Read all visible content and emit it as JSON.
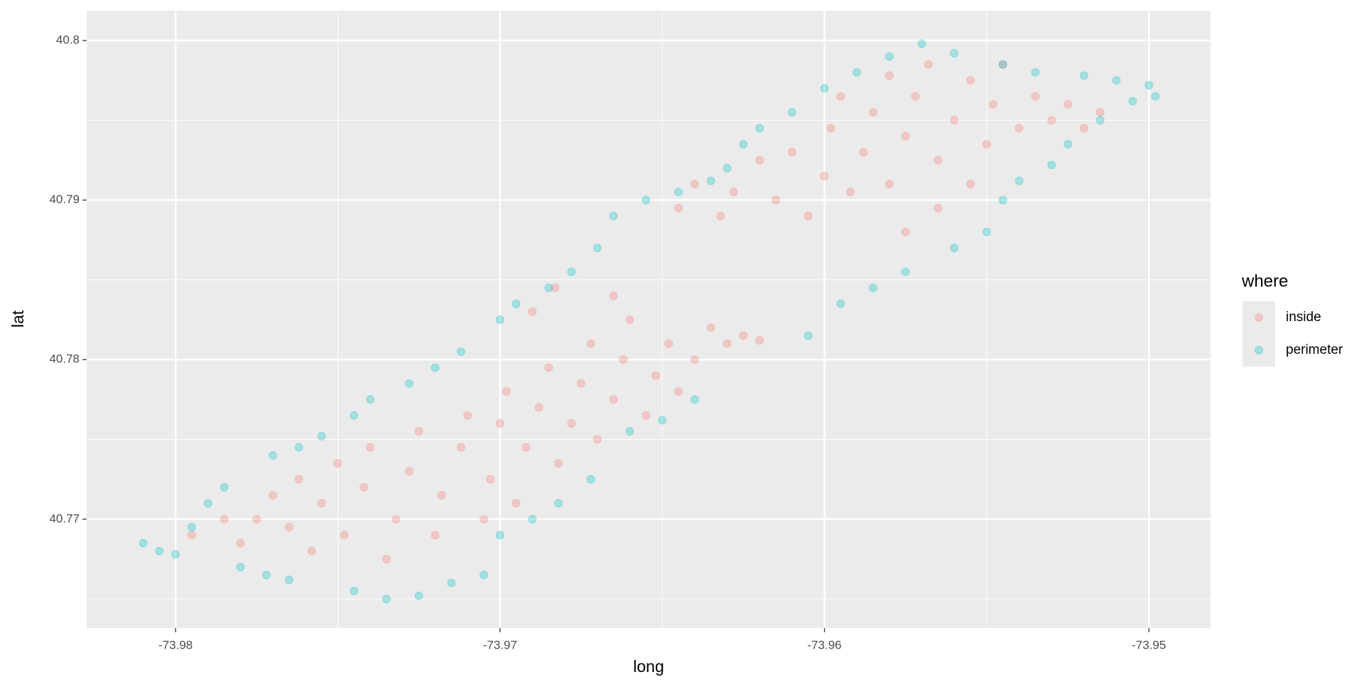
{
  "chart_data": {
    "type": "scatter",
    "x_label": "long",
    "y_label": "lat",
    "xlim": [
      -73.98274,
      -73.9481
    ],
    "ylim": [
      40.76318,
      40.80187
    ],
    "xticks": [
      -73.98,
      -73.97,
      -73.96,
      -73.95
    ],
    "yticks": [
      40.77,
      40.78,
      40.79,
      40.8
    ],
    "x_minor_ticks": [
      -73.975,
      -73.965,
      -73.955
    ],
    "y_minor_ticks": [
      40.765,
      40.775,
      40.785,
      40.795
    ],
    "grid": true,
    "opacity": 0.3,
    "legend_title": "where",
    "legend_position": "right",
    "series": [
      {
        "name": "inside",
        "color": "#F8766D",
        "x": [
          -73.9795,
          -73.9785,
          -73.978,
          -73.9775,
          -73.977,
          -73.9765,
          -73.9762,
          -73.9758,
          -73.9755,
          -73.975,
          -73.9748,
          -73.9742,
          -73.974,
          -73.9735,
          -73.9732,
          -73.9728,
          -73.9725,
          -73.972,
          -73.9718,
          -73.9712,
          -73.971,
          -73.9705,
          -73.9703,
          -73.97,
          -73.9698,
          -73.9695,
          -73.9692,
          -73.9688,
          -73.9685,
          -73.9682,
          -73.9678,
          -73.9675,
          -73.9672,
          -73.967,
          -73.9665,
          -73.9662,
          -73.966,
          -73.9655,
          -73.9652,
          -73.9648,
          -73.9645,
          -73.964,
          -73.9635,
          -73.963,
          -73.9625,
          -73.962,
          -73.9683,
          -73.969,
          -73.9665,
          -73.9645,
          -73.964,
          -73.9632,
          -73.9628,
          -73.962,
          -73.9615,
          -73.961,
          -73.9605,
          -73.96,
          -73.9598,
          -73.9592,
          -73.9588,
          -73.9585,
          -73.958,
          -73.9575,
          -73.9572,
          -73.9568,
          -73.9565,
          -73.956,
          -73.9555,
          -73.955,
          -73.9548,
          -73.9545,
          -73.954,
          -73.9535,
          -73.953,
          -73.9525,
          -73.952,
          -73.9515,
          -73.9575,
          -73.9565,
          -73.9555,
          -73.958,
          -73.9595
        ],
        "y": [
          40.769,
          40.77,
          40.7685,
          40.77,
          40.7715,
          40.7695,
          40.7725,
          40.768,
          40.771,
          40.7735,
          40.769,
          40.772,
          40.7745,
          40.7675,
          40.77,
          40.773,
          40.7755,
          40.769,
          40.7715,
          40.7745,
          40.7765,
          40.77,
          40.7725,
          40.776,
          40.778,
          40.771,
          40.7745,
          40.777,
          40.7795,
          40.7735,
          40.776,
          40.7785,
          40.781,
          40.775,
          40.7775,
          40.78,
          40.7825,
          40.7765,
          40.779,
          40.781,
          40.778,
          40.78,
          40.782,
          40.781,
          40.7815,
          40.7812,
          40.7845,
          40.783,
          40.784,
          40.7895,
          40.791,
          40.789,
          40.7905,
          40.7925,
          40.79,
          40.793,
          40.789,
          40.7915,
          40.7945,
          40.7905,
          40.793,
          40.7955,
          40.791,
          40.794,
          40.7965,
          40.7985,
          40.7925,
          40.795,
          40.7975,
          40.7935,
          40.796,
          40.7985,
          40.7945,
          40.7965,
          40.795,
          40.796,
          40.7945,
          40.7955,
          40.788,
          40.7895,
          40.791,
          40.7978,
          40.7965
        ]
      },
      {
        "name": "perimeter",
        "color": "#00BFC4",
        "x": [
          -73.981,
          -73.9805,
          -73.98,
          -73.9795,
          -73.979,
          -73.9785,
          -73.978,
          -73.9772,
          -73.9765,
          -73.977,
          -73.9762,
          -73.9755,
          -73.9745,
          -73.9745,
          -73.974,
          -73.9735,
          -73.9728,
          -73.9725,
          -73.972,
          -73.9715,
          -73.9712,
          -73.9705,
          -73.97,
          -73.97,
          -73.9695,
          -73.969,
          -73.9685,
          -73.9682,
          -73.9678,
          -73.9672,
          -73.967,
          -73.9665,
          -73.966,
          -73.9655,
          -73.965,
          -73.9645,
          -73.964,
          -73.9635,
          -73.963,
          -73.9625,
          -73.962,
          -73.961,
          -73.9605,
          -73.96,
          -73.9595,
          -73.959,
          -73.9585,
          -73.958,
          -73.9575,
          -73.957,
          -73.956,
          -73.956,
          -73.955,
          -73.9545,
          -73.9545,
          -73.954,
          -73.9535,
          -73.953,
          -73.9525,
          -73.952,
          -73.9515,
          -73.951,
          -73.9505,
          -73.95,
          -73.9498
        ],
        "y": [
          40.7685,
          40.768,
          40.7678,
          40.7695,
          40.771,
          40.772,
          40.767,
          40.7665,
          40.7662,
          40.774,
          40.7745,
          40.7752,
          40.7655,
          40.7765,
          40.7775,
          40.765,
          40.7785,
          40.7652,
          40.7795,
          40.766,
          40.7805,
          40.7665,
          40.7825,
          40.769,
          40.7835,
          40.77,
          40.7845,
          40.771,
          40.7855,
          40.7725,
          40.787,
          40.789,
          40.7755,
          40.79,
          40.7762,
          40.7905,
          40.7775,
          40.7912,
          40.792,
          40.7935,
          40.7945,
          40.7955,
          40.7815,
          40.797,
          40.7835,
          40.798,
          40.7845,
          40.799,
          40.7855,
          40.7998,
          40.787,
          40.7992,
          40.788,
          40.7985,
          40.79,
          40.7912,
          40.798,
          40.7922,
          40.7935,
          40.7978,
          40.795,
          40.7975,
          40.7962,
          40.7972,
          40.7965
        ]
      }
    ]
  }
}
